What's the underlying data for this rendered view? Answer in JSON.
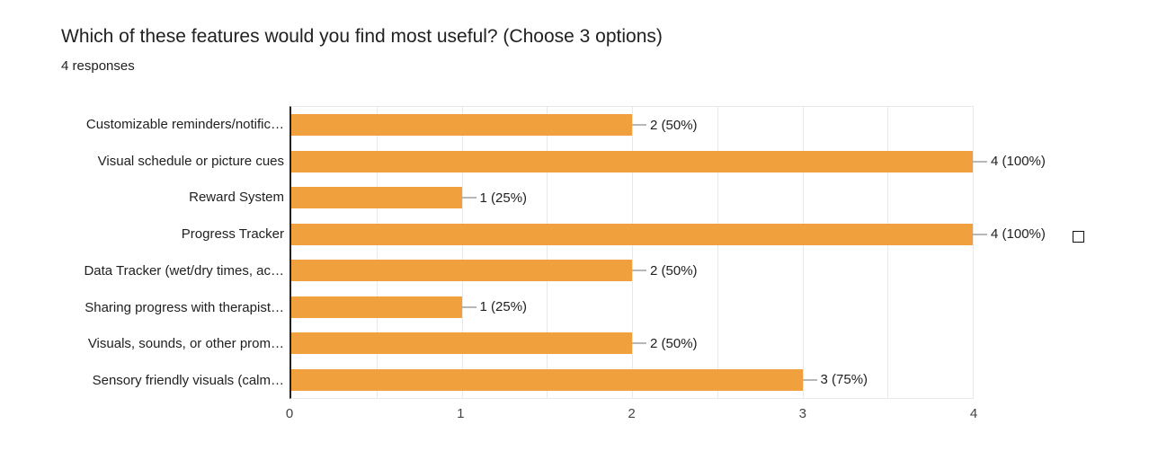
{
  "chart_data": {
    "type": "bar",
    "orientation": "horizontal",
    "title": "Which of these features would you find most useful? (Choose 3 options)",
    "subtitle": "4 responses",
    "categories": [
      "Customizable reminders/notific…",
      "Visual schedule or picture cues",
      "Reward System",
      "Progress Tracker",
      "Data Tracker (wet/dry times, ac…",
      "Sharing progress with therapist…",
      "Visuals, sounds, or other prom…",
      "Sensory friendly visuals (calm…"
    ],
    "values": [
      2,
      4,
      1,
      4,
      2,
      1,
      2,
      3
    ],
    "value_labels": [
      "2 (50%)",
      "4 (100%)",
      "1 (25%)",
      "4 (100%)",
      "2 (50%)",
      "1 (25%)",
      "2 (50%)",
      "3 (75%)"
    ],
    "xlim": [
      0,
      4
    ],
    "x_ticks": [
      "0",
      "1",
      "2",
      "3",
      "4"
    ],
    "gridline_step": 0.5,
    "grid": true,
    "legend": "none",
    "colors": {
      "bar": "#F0A03C",
      "gridline": "#e8e8e8",
      "axis_line": "#212121",
      "connector": "#b7b7b7",
      "text": "#212121",
      "tick_text": "#444444"
    },
    "annotations": [
      {
        "row": "Progress Tracker",
        "icon": "empty-square-glyph"
      }
    ]
  }
}
